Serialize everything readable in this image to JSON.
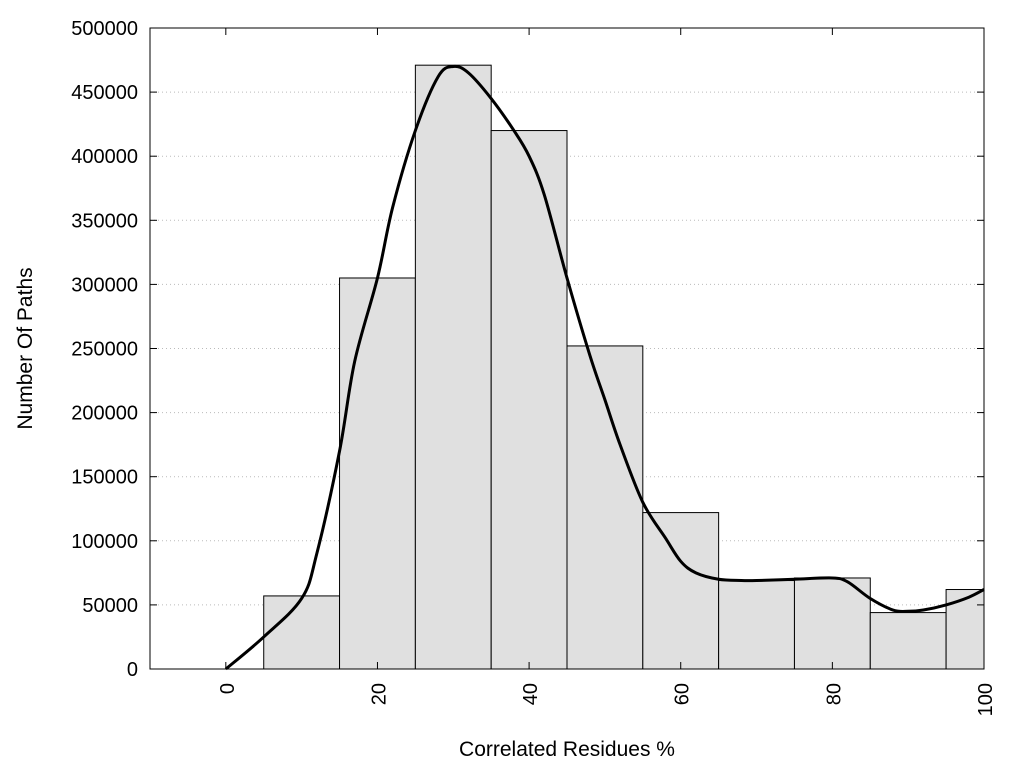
{
  "chart_data": {
    "type": "bar",
    "title": "",
    "xlabel": "Correlated Residues %",
    "ylabel": "Number Of Paths",
    "xlim": [
      -10,
      100
    ],
    "ylim": [
      0,
      500000
    ],
    "xticks": [
      0,
      20,
      40,
      60,
      80,
      100
    ],
    "yticks": [
      0,
      50000,
      100000,
      150000,
      200000,
      250000,
      300000,
      350000,
      400000,
      450000,
      500000
    ],
    "grid": "horizontal dotted",
    "bin_width": 10,
    "bars": [
      {
        "x": 10,
        "value": 57000
      },
      {
        "x": 20,
        "value": 305000
      },
      {
        "x": 30,
        "value": 471000
      },
      {
        "x": 40,
        "value": 420000
      },
      {
        "x": 50,
        "value": 252000
      },
      {
        "x": 60,
        "value": 122000
      },
      {
        "x": 70,
        "value": 69000
      },
      {
        "x": 80,
        "value": 71000
      },
      {
        "x": 90,
        "value": 44000
      },
      {
        "x": 100,
        "value": 62000
      }
    ],
    "curve": {
      "x": [
        0,
        5,
        10,
        12,
        15,
        17,
        20,
        22,
        25,
        28,
        30,
        32,
        35,
        38,
        40,
        42,
        45,
        48,
        50,
        52,
        55,
        58,
        60,
        62,
        65,
        68,
        70,
        75,
        80,
        82,
        85,
        88,
        90,
        92,
        95,
        98,
        100
      ],
      "y": [
        0,
        25000,
        55000,
        90000,
        170000,
        240000,
        305000,
        360000,
        420000,
        462000,
        470000,
        465000,
        445000,
        420000,
        400000,
        370000,
        305000,
        245000,
        210000,
        175000,
        130000,
        102000,
        84000,
        75000,
        70000,
        69000,
        69000,
        70000,
        71000,
        68000,
        55000,
        46000,
        45000,
        46000,
        50000,
        56000,
        62000
      ]
    },
    "bar_color": "#e0e0e0",
    "line_color": "#000000"
  }
}
